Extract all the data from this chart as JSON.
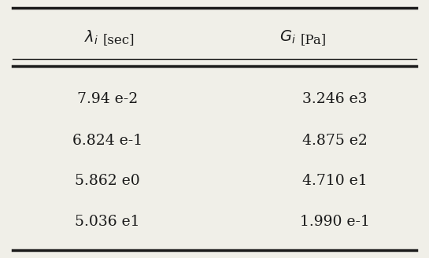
{
  "col1_header_math": "$\\lambda_{i}$",
  "col1_header_unit": "[sec]",
  "col2_header_math": "$G_{i}$",
  "col2_header_unit": "[Pa]",
  "col1_values": [
    "7.94 e-2",
    "6.824 e-1",
    "5.862 e0",
    "5.036 e1"
  ],
  "col2_values": [
    "3.246 e3",
    "4.875 e2",
    "4.710 e1",
    "1.990 e-1"
  ],
  "bg_color": "#f0efe8",
  "text_color": "#1a1a1a",
  "line_color": "#1a1a1a",
  "figsize": [
    5.45,
    3.28
  ],
  "dpi": 100,
  "font_size": 13.5,
  "header_font_size": 14
}
